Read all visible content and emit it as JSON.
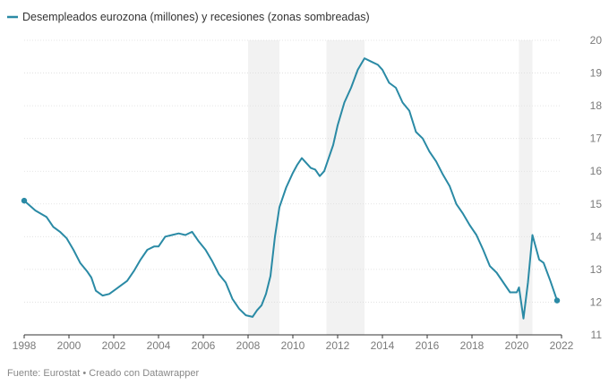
{
  "chart_data": {
    "type": "line",
    "legend": {
      "label": "Desempleados eurozona (millones) y recesiones (zonas sombreadas)",
      "placement": "top-left"
    },
    "source_text": "Fuente: Eurostat • Creado con Datawrapper",
    "xlim": [
      1998,
      2022
    ],
    "ylim": [
      11,
      20
    ],
    "x_ticks": [
      "1998",
      "2000",
      "2002",
      "2004",
      "2006",
      "2008",
      "2010",
      "2012",
      "2014",
      "2016",
      "2018",
      "2020",
      "2022"
    ],
    "y_ticks": [
      "11",
      "12",
      "13",
      "14",
      "15",
      "16",
      "17",
      "18",
      "19",
      "20"
    ],
    "grid": "horizontal",
    "colors": {
      "line": "#2a8aa5",
      "recession": "#f2f2f2",
      "grid": "#dddddd"
    },
    "recessions": [
      [
        2008.0,
        2009.4
      ],
      [
        2011.5,
        2013.2
      ],
      [
        2020.1,
        2020.7
      ]
    ],
    "series": [
      {
        "x": [
          1998.0,
          1998.5,
          1999.0,
          1999.3,
          1999.6,
          1999.9,
          2000.2,
          2000.5,
          2000.8,
          2001.0,
          2001.2,
          2001.5,
          2001.8,
          2002.0,
          2002.3,
          2002.6,
          2002.9,
          2003.2,
          2003.5,
          2003.8,
          2004.0,
          2004.3,
          2004.6,
          2004.9,
          2005.2,
          2005.5,
          2005.8,
          2006.1,
          2006.4,
          2006.7,
          2007.0,
          2007.3,
          2007.6,
          2007.9,
          2008.2,
          2008.4,
          2008.6,
          2008.8,
          2009.0,
          2009.2,
          2009.4,
          2009.7,
          2010.0,
          2010.2,
          2010.4,
          2010.6,
          2010.8,
          2011.0,
          2011.2,
          2011.4,
          2011.6,
          2011.8,
          2012.0,
          2012.3,
          2012.6,
          2012.9,
          2013.2,
          2013.5,
          2013.8,
          2014.0,
          2014.3,
          2014.6,
          2014.9,
          2015.2,
          2015.5,
          2015.8,
          2016.1,
          2016.4,
          2016.7,
          2017.0,
          2017.3,
          2017.6,
          2017.9,
          2018.2,
          2018.5,
          2018.8,
          2019.1,
          2019.4,
          2019.7,
          2020.0,
          2020.1,
          2020.3,
          2020.5,
          2020.7,
          2021.0,
          2021.2,
          2021.5,
          2021.8
        ],
        "y": [
          15.1,
          14.8,
          14.6,
          14.3,
          14.15,
          13.95,
          13.6,
          13.2,
          12.95,
          12.75,
          12.35,
          12.2,
          12.25,
          12.35,
          12.5,
          12.65,
          12.95,
          13.3,
          13.6,
          13.7,
          13.7,
          14.0,
          14.05,
          14.1,
          14.05,
          14.15,
          13.85,
          13.6,
          13.25,
          12.85,
          12.6,
          12.1,
          11.8,
          11.6,
          11.55,
          11.75,
          11.9,
          12.25,
          12.8,
          14.0,
          14.9,
          15.5,
          15.95,
          16.2,
          16.4,
          16.25,
          16.1,
          16.05,
          15.85,
          16.0,
          16.4,
          16.8,
          17.4,
          18.1,
          18.55,
          19.1,
          19.45,
          19.35,
          19.25,
          19.1,
          18.7,
          18.55,
          18.1,
          17.85,
          17.2,
          17.0,
          16.6,
          16.3,
          15.9,
          15.55,
          15.0,
          14.7,
          14.35,
          14.05,
          13.6,
          13.1,
          12.9,
          12.6,
          12.3,
          12.3,
          12.45,
          11.5,
          12.6,
          14.05,
          13.3,
          13.2,
          12.65,
          12.05
        ]
      }
    ]
  }
}
